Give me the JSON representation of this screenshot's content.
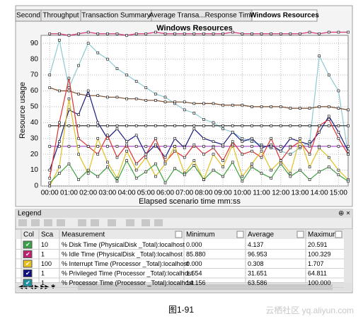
{
  "tabs": [
    "Second",
    "Throughput",
    "Transaction Summary",
    "Average Transa...Response Time",
    "Windows Resources"
  ],
  "active_tab": 4,
  "chart_data": {
    "type": "line",
    "title": "Windows Resources",
    "x_label": "Elapsed scenario time mm:ss",
    "y_label": "Resource usage",
    "x": [
      0,
      0.5,
      1,
      1.5,
      2,
      2.5,
      3,
      3.5,
      4,
      4.5,
      5,
      5.5,
      6,
      6.5,
      7,
      7.5,
      8,
      8.5,
      9,
      9.5,
      10,
      10.5,
      11,
      11.5,
      12,
      12.5,
      13,
      13.5,
      14,
      14.5,
      15,
      15.5
    ],
    "xlim": [
      -0.45,
      15.5
    ],
    "xticks": [
      {
        "value": 0,
        "label": "00:00"
      },
      {
        "value": 1,
        "label": "01:00"
      },
      {
        "value": 2,
        "label": "02:00"
      },
      {
        "value": 3,
        "label": "03:00"
      },
      {
        "value": 4,
        "label": "04:00"
      },
      {
        "value": 5,
        "label": "05:00"
      },
      {
        "value": 6,
        "label": "06:00"
      },
      {
        "value": 7,
        "label": "07:00"
      },
      {
        "value": 8,
        "label": "08:00"
      },
      {
        "value": 9,
        "label": "09:00"
      },
      {
        "value": 10,
        "label": "10:00"
      },
      {
        "value": 11,
        "label": "11:00"
      },
      {
        "value": 12,
        "label": "12:00"
      },
      {
        "value": 13,
        "label": "13:00"
      },
      {
        "value": 14,
        "label": "14:00"
      },
      {
        "value": 15,
        "label": "15:00"
      }
    ],
    "ylim": [
      0,
      95
    ],
    "yticks": [
      0,
      10,
      20,
      30,
      40,
      50,
      60,
      70,
      80,
      90
    ],
    "grid": true,
    "series": [
      {
        "color": "#d03878",
        "values": [
          96,
          96,
          95,
          96,
          97,
          96,
          96,
          96,
          95,
          96,
          96,
          97,
          96,
          96,
          96,
          96,
          96,
          96,
          96,
          97,
          96,
          96,
          96,
          96,
          96,
          96,
          96,
          97,
          96,
          97,
          97,
          97
        ]
      },
      {
        "color": "#8ccad4",
        "values": [
          70,
          92,
          62,
          76,
          90,
          84,
          80,
          74,
          70,
          66,
          62,
          58,
          56,
          52,
          48,
          46,
          42,
          40,
          36,
          34,
          30,
          28,
          26,
          24,
          22,
          20,
          24,
          28,
          82,
          70,
          60,
          20
        ]
      },
      {
        "color": "#7a4a2a",
        "values": [
          62,
          60,
          60,
          58,
          57,
          57,
          56,
          56,
          55,
          55,
          54,
          54,
          53,
          53,
          53,
          52,
          52,
          52,
          51,
          51,
          51,
          50,
          50,
          50,
          50,
          49,
          49,
          49,
          50,
          50,
          49,
          48
        ]
      },
      {
        "color": "#202020",
        "values": [
          38,
          38,
          38,
          38,
          38,
          38,
          38,
          38,
          38,
          38,
          38,
          38,
          38,
          38,
          38,
          38,
          38,
          38,
          38,
          38,
          38,
          38,
          38,
          38,
          38,
          38,
          38,
          38,
          38,
          38,
          38,
          38
        ]
      },
      {
        "color": "#a040c0",
        "values": [
          25,
          25,
          25,
          25,
          25,
          25,
          25,
          25,
          25,
          25,
          25,
          25,
          25,
          25,
          25,
          25,
          25,
          25,
          25,
          25,
          25,
          25,
          25,
          25,
          25,
          25,
          25,
          25,
          25,
          25,
          25,
          25
        ]
      },
      {
        "color": "#1a1a80",
        "values": [
          10,
          28,
          48,
          45,
          60,
          40,
          30,
          36,
          28,
          32,
          20,
          26,
          18,
          30,
          24,
          36,
          30,
          28,
          26,
          34,
          28,
          30,
          24,
          26,
          22,
          30,
          28,
          26,
          34,
          44,
          34,
          22
        ]
      },
      {
        "color": "#e03030",
        "values": [
          5,
          40,
          68,
          30,
          25,
          20,
          32,
          18,
          26,
          14,
          20,
          30,
          15,
          22,
          18,
          26,
          20,
          24,
          16,
          28,
          20,
          22,
          18,
          30,
          16,
          24,
          28,
          20,
          38,
          42,
          30,
          20
        ]
      },
      {
        "color": "#e0c020",
        "values": [
          0,
          12,
          55,
          20,
          8,
          30,
          15,
          5,
          22,
          10,
          18,
          6,
          14,
          25,
          8,
          16,
          4,
          20,
          12,
          26,
          6,
          14,
          22,
          10,
          16,
          8,
          30,
          12,
          24,
          18,
          10,
          4
        ]
      },
      {
        "color": "#40a040",
        "values": [
          2,
          8,
          14,
          4,
          10,
          6,
          12,
          3,
          16,
          5,
          9,
          14,
          2,
          11,
          7,
          13,
          4,
          10,
          6,
          15,
          3,
          12,
          8,
          5,
          14,
          6,
          10,
          4,
          9,
          12,
          7,
          3
        ]
      }
    ]
  },
  "legend": {
    "title": "Legend",
    "columns": [
      "Col",
      "Sca",
      "Measurement",
      "Minimum",
      "Average",
      "Maximum"
    ],
    "rows": [
      {
        "color": "#3aa04a",
        "cells": [
          "10",
          "% Disk Time (PhysicalDisk _Total):localhost",
          "0.000",
          "4.137",
          "20.591"
        ]
      },
      {
        "color": "#c02070",
        "cells": [
          "1",
          "% Idle Time (PhysicalDisk _Total):localhost",
          "85.880",
          "96.953",
          "100.329"
        ]
      },
      {
        "color": "#e8c020",
        "cells": [
          "100",
          "% Interrupt Time (Processor _Total):localhost",
          "0.000",
          "0.308",
          "1.707"
        ]
      },
      {
        "color": "#101080",
        "cells": [
          "1",
          "% Privileged Time (Processor _Total):localhost",
          "1.654",
          "31.651",
          "64.811"
        ]
      },
      {
        "color": "#2090a0",
        "cells": [
          "1",
          "% Processor Time (Processor _Total):localhost",
          "14.156",
          "63.586",
          "100.000"
        ]
      }
    ]
  },
  "caption": "图1-91",
  "watermark": "云栖社区 yq.aliyun.com"
}
